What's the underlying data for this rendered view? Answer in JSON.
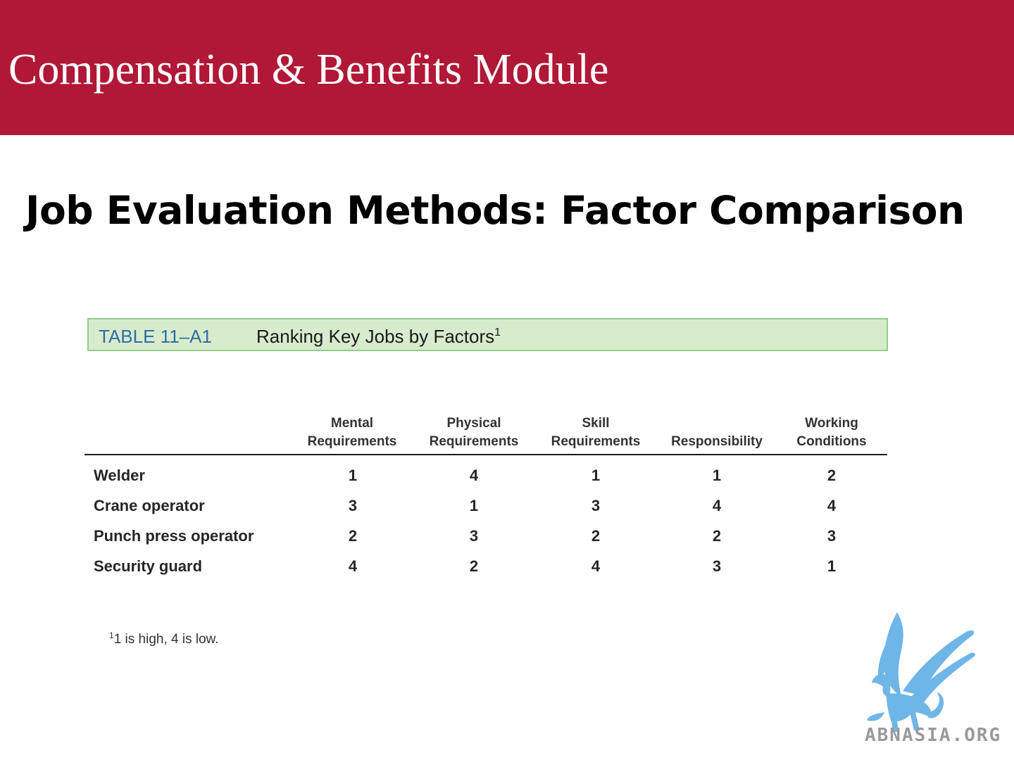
{
  "header": {
    "title": "Compensation & Benefits Module",
    "band_color": "#b11736"
  },
  "slide": {
    "title": "Job Evaluation Methods: Factor Comparison"
  },
  "table": {
    "caption_number": "TABLE 11–A1",
    "caption_title": "Ranking Key Jobs by Factors",
    "caption_footnote_mark": "1",
    "columns": [
      "Mental\nRequirements",
      "Physical\nRequirements",
      "Skill\nRequirements",
      "Responsibility",
      "Working\nConditions"
    ],
    "rows": [
      {
        "job": "Welder",
        "values": [
          "1",
          "4",
          "1",
          "1",
          "2"
        ]
      },
      {
        "job": "Crane operator",
        "values": [
          "3",
          "1",
          "3",
          "4",
          "4"
        ]
      },
      {
        "job": "Punch press operator",
        "values": [
          "2",
          "3",
          "2",
          "2",
          "3"
        ]
      },
      {
        "job": "Security guard",
        "values": [
          "4",
          "2",
          "4",
          "3",
          "1"
        ]
      }
    ],
    "footnote_mark": "1",
    "footnote_text": "1 is high, 4 is low."
  },
  "logo": {
    "icon": "griffin-logo-icon",
    "text": "ABNASIA.ORG",
    "color": "#6fb6e8"
  }
}
